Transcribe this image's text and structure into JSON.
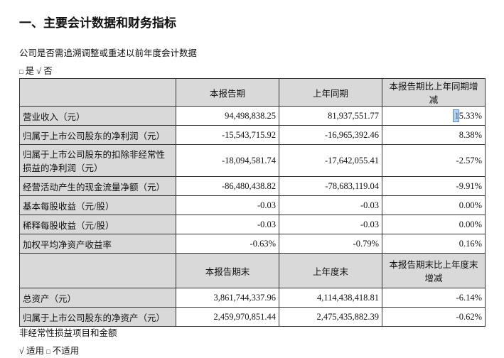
{
  "title": "一、主要会计数据和财务指标",
  "question": "公司是否需追溯调整或重述以前年度会计数据",
  "choice1": {
    "box": "□",
    "yes": "是",
    "check": "√",
    "no": "否"
  },
  "table1": {
    "headers": [
      "",
      "本报告期",
      "上年同期",
      "本报告期比上年同期增减"
    ],
    "rows": [
      [
        "营业收入（元）",
        "94,498,838.25",
        "81,937,551.77",
        "15.33%"
      ],
      [
        "归属于上市公司股东的净利润（元）",
        "-15,543,715.92",
        "-16,965,392.46",
        "8.38%"
      ],
      [
        "归属于上市公司股东的扣除非经常性损益的净利润（元）",
        "-18,094,581.74",
        "-17,642,055.41",
        "-2.57%"
      ],
      [
        "经营活动产生的现金流量净额（元）",
        "-86,480,438.82",
        "-78,683,119.04",
        "-9.91%"
      ],
      [
        "基本每股收益（元/股）",
        "-0.03",
        "-0.03",
        "0.00%"
      ],
      [
        "稀释每股收益（元/股）",
        "-0.03",
        "-0.03",
        "0.00%"
      ],
      [
        "加权平均净资产收益率",
        "-0.63%",
        "-0.79%",
        "0.16%"
      ]
    ]
  },
  "table2": {
    "headers": [
      "",
      "本报告期末",
      "上年度末",
      "本报告期末比上年度末增减"
    ],
    "rows": [
      [
        "总资产（元）",
        "3,861,744,337.96",
        "4,114,438,418.81",
        "-6.14%"
      ],
      [
        "归属于上市公司股东的净资产（元）",
        "2,459,970,851.44",
        "2,475,435,882.39",
        "-0.62%"
      ]
    ]
  },
  "nonrecurring": "非经常性损益项目和金额",
  "choice2": {
    "check": "√",
    "applicable": "适用",
    "box": "□",
    "not_applicable": "不适用"
  }
}
